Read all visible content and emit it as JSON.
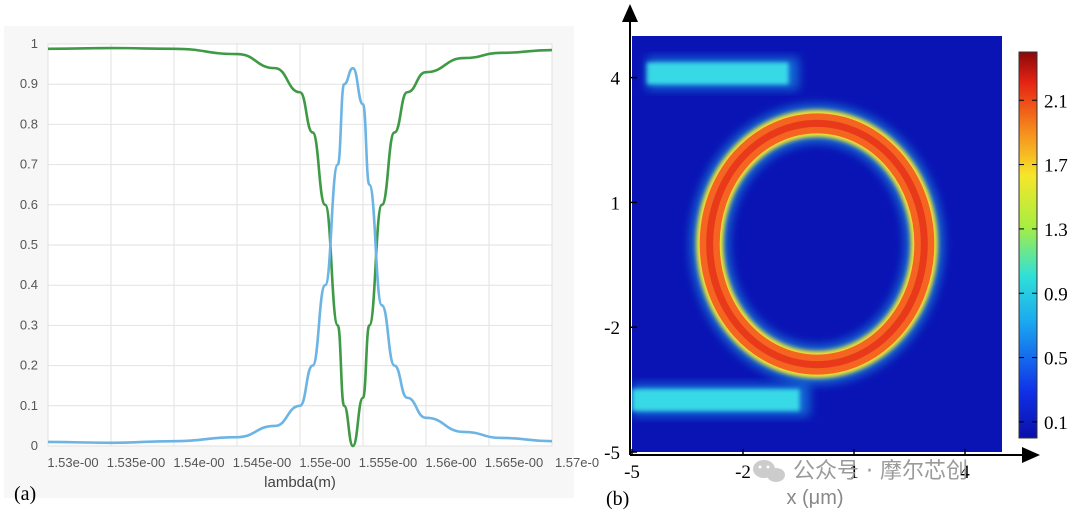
{
  "panels": {
    "a_label": "(a)",
    "b_label": "(b)"
  },
  "watermark": "公众号 · 摩尔芯创",
  "colors": {
    "through": "#3f9a45",
    "drop": "#6cb4e4",
    "field_bg": "#0a14b4",
    "ring": "#f56420"
  },
  "chart_data": [
    {
      "type": "line",
      "xlabel": "lambda(m)",
      "x_tick_labels": [
        "1.53e-00",
        "1.535e-00",
        "1.54e-00",
        "1.545e-00",
        "1.55e-00",
        "1.555e-00",
        "1.56e-00",
        "1.565e-00",
        "1.57e-0"
      ],
      "x_ticks": [
        1.53e-06,
        1.535e-06,
        1.54e-06,
        1.545e-06,
        1.55e-06,
        1.555e-06,
        1.56e-06,
        1.565e-06,
        1.57e-06
      ],
      "xlim": [
        1.53e-06,
        1.57e-06
      ],
      "ylim": [
        0,
        1
      ],
      "y_tick_labels": [
        "0",
        "0.1",
        "0.2",
        "0.3",
        "0.4",
        "0.5",
        "0.6",
        "0.7",
        "0.8",
        "0.9",
        "1"
      ],
      "grid": true,
      "series": [
        {
          "color": "#3f9a45",
          "points": [
            [
              1.53e-06,
              0.988
            ],
            [
              1.535e-06,
              0.99
            ],
            [
              1.54e-06,
              0.988
            ],
            [
              1.545e-06,
              0.975
            ],
            [
              1.548e-06,
              0.94
            ],
            [
              1.55e-06,
              0.88
            ],
            [
              1.551e-06,
              0.78
            ],
            [
              1.552e-06,
              0.6
            ],
            [
              1.553e-06,
              0.3
            ],
            [
              1.5535e-06,
              0.1
            ],
            [
              1.5542e-06,
              0.0
            ],
            [
              1.555e-06,
              0.12
            ],
            [
              1.5555e-06,
              0.3
            ],
            [
              1.5565e-06,
              0.6
            ],
            [
              1.5575e-06,
              0.78
            ],
            [
              1.5585e-06,
              0.88
            ],
            [
              1.56e-06,
              0.93
            ],
            [
              1.563e-06,
              0.965
            ],
            [
              1.566e-06,
              0.978
            ],
            [
              1.57e-06,
              0.985
            ]
          ]
        },
        {
          "color": "#6cb4e4",
          "points": [
            [
              1.53e-06,
              0.01
            ],
            [
              1.535e-06,
              0.008
            ],
            [
              1.54e-06,
              0.012
            ],
            [
              1.545e-06,
              0.022
            ],
            [
              1.548e-06,
              0.05
            ],
            [
              1.55e-06,
              0.1
            ],
            [
              1.551e-06,
              0.2
            ],
            [
              1.552e-06,
              0.4
            ],
            [
              1.553e-06,
              0.7
            ],
            [
              1.5535e-06,
              0.9
            ],
            [
              1.5542e-06,
              0.94
            ],
            [
              1.555e-06,
              0.85
            ],
            [
              1.5555e-06,
              0.65
            ],
            [
              1.5565e-06,
              0.35
            ],
            [
              1.5575e-06,
              0.2
            ],
            [
              1.5585e-06,
              0.12
            ],
            [
              1.56e-06,
              0.07
            ],
            [
              1.563e-06,
              0.035
            ],
            [
              1.566e-06,
              0.02
            ],
            [
              1.57e-06,
              0.012
            ]
          ]
        }
      ]
    },
    {
      "type": "heatmap",
      "xlabel": "x (μm)",
      "xlim": [
        -5,
        5
      ],
      "ylim": [
        -5,
        5
      ],
      "x_tick_labels": [
        "-5",
        "-2",
        "1",
        "4"
      ],
      "x_ticks": [
        -5,
        -2,
        1,
        4
      ],
      "y_tick_labels": [
        "4",
        "1",
        "-2",
        "-5"
      ],
      "y_ticks": [
        4,
        1,
        -2,
        -5
      ],
      "colorbar_ticks": [
        0.1,
        0.5,
        0.9,
        1.3,
        1.7,
        2.1
      ],
      "colorbar_tick_labels": [
        "0.1",
        "0.5",
        "0.9",
        "1.3",
        "1.7",
        "2.1"
      ],
      "colorbar_range": [
        0,
        2.4
      ],
      "ring": {
        "center_x": 0,
        "center_y": 0,
        "radius": 2.9,
        "value": 2.1
      },
      "bus_waveguides": [
        {
          "y": 4.1,
          "x_start": -4.6,
          "x_end": -0.5,
          "value": 0.85
        },
        {
          "y": -3.75,
          "x_start": -5,
          "x_end": -0.2,
          "value": 0.85
        }
      ]
    }
  ]
}
